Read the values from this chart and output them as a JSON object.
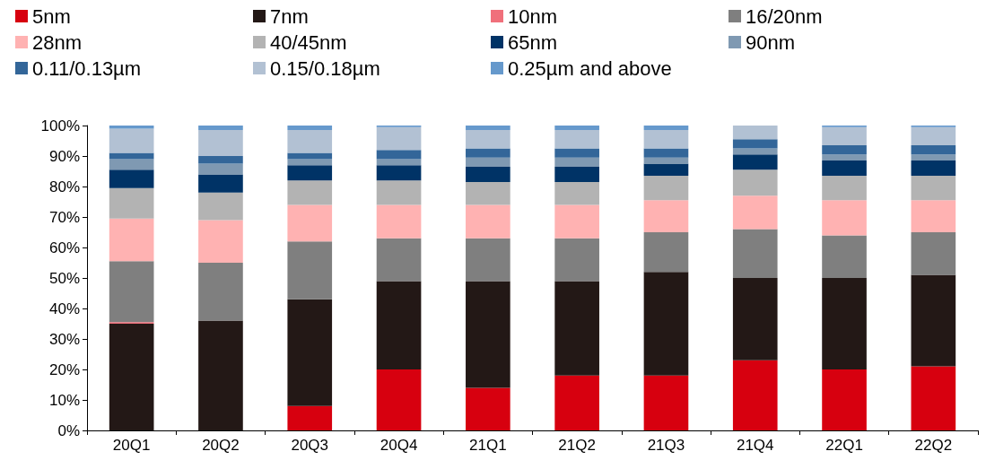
{
  "chart_data": {
    "type": "bar",
    "stacked": true,
    "legend": "top",
    "grid": false,
    "categories": [
      "20Q1",
      "20Q2",
      "20Q3",
      "20Q4",
      "21Q1",
      "21Q2",
      "21Q3",
      "21Q4",
      "22Q1",
      "22Q2"
    ],
    "ylim": [
      0,
      100
    ],
    "yticks": [
      {
        "value": 0,
        "label": "0%"
      },
      {
        "value": 10,
        "label": "10%"
      },
      {
        "value": 20,
        "label": "20%"
      },
      {
        "value": 30,
        "label": "30%"
      },
      {
        "value": 40,
        "label": "40%"
      },
      {
        "value": 50,
        "label": "50%"
      },
      {
        "value": 60,
        "label": "60%"
      },
      {
        "value": 70,
        "label": "70%"
      },
      {
        "value": 80,
        "label": "80%"
      },
      {
        "value": 90,
        "label": "90%"
      },
      {
        "value": 100,
        "label": "100%"
      }
    ],
    "series": [
      {
        "name": "5nm",
        "color": "#d7000f",
        "values": [
          null,
          null,
          8,
          20,
          14,
          18,
          18,
          23,
          20,
          21
        ]
      },
      {
        "name": "7nm",
        "color": "#231816",
        "values": [
          35,
          36,
          35,
          29,
          35,
          31,
          34,
          27,
          30,
          30
        ]
      },
      {
        "name": "10nm",
        "color": "#f0707b",
        "values": [
          0.5,
          null,
          null,
          null,
          null,
          null,
          null,
          null,
          null,
          null
        ]
      },
      {
        "name": "16/20nm",
        "color": "#7f7f7f",
        "values": [
          20,
          19,
          19,
          14,
          14,
          14,
          13,
          16,
          14,
          14
        ]
      },
      {
        "name": "28nm",
        "color": "#ffb2b2",
        "values": [
          14,
          14,
          12,
          11,
          11,
          11,
          10.5,
          11,
          11.5,
          10.5
        ]
      },
      {
        "name": "40/45nm",
        "color": "#b3b3b3",
        "values": [
          10,
          9,
          8,
          8,
          7.5,
          7.5,
          8,
          8.5,
          8,
          8
        ]
      },
      {
        "name": "65nm",
        "color": "#003366",
        "values": [
          6,
          6,
          5,
          5,
          5,
          5,
          4,
          5,
          5,
          5
        ]
      },
      {
        "name": "90nm",
        "color": "#7f99b2",
        "values": [
          3.5,
          3.5,
          2,
          2,
          3,
          3,
          2,
          2,
          2,
          2
        ]
      },
      {
        "name": "0.11/0.13µm",
        "color": "#336699",
        "values": [
          2,
          2.5,
          2,
          3,
          3,
          3,
          3,
          3,
          3,
          3
        ]
      },
      {
        "name": "0.15/0.18µm",
        "color": "#b2c1d3",
        "values": [
          8,
          8.5,
          7.5,
          7.5,
          6,
          6,
          6,
          4.5,
          6,
          6
        ]
      },
      {
        "name": "0.25µm and above",
        "color": "#6699cc",
        "values": [
          1,
          1.5,
          1.5,
          0.5,
          1.5,
          1.5,
          1.5,
          null,
          0.5,
          0.5
        ]
      }
    ]
  }
}
